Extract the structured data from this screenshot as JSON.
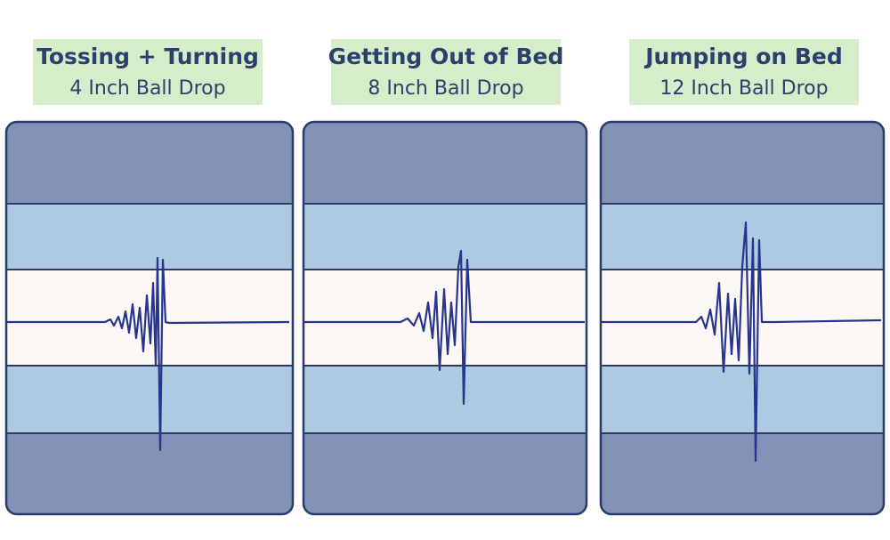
{
  "panels": [
    {
      "title": "Tossing + Turning",
      "subtitle": "4 Inch Ball Drop"
    },
    {
      "title": "Getting Out of Bed",
      "subtitle": "8 Inch Ball Drop"
    },
    {
      "title": "Jumping on Bed",
      "subtitle": "12 Inch Ball Drop"
    }
  ]
}
